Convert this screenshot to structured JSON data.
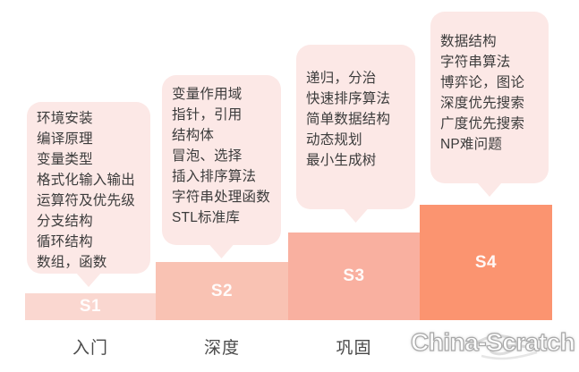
{
  "diagram": {
    "type": "staircase-curriculum-roadmap",
    "watermark": "China-Scratch"
  },
  "colors": {
    "background": "#ffffff",
    "bubble_fill": "#fce8e6",
    "bubble_text": "#3c3c3c",
    "step_label_text": "#ffffff",
    "stage_name_text": "#4a4a4a",
    "watermark_fill": "#ffffff",
    "watermark_outline": "#a8a8a8",
    "step_colors": [
      "#fad7d0",
      "#f9c2b3",
      "#f9b0a0",
      "#fb9470"
    ]
  },
  "stages": [
    {
      "step_label": "S1",
      "stage_name": "入门",
      "topics": [
        "环境安装",
        "编译原理",
        "变量类型",
        "格式化输入输出",
        "运算符及优先级",
        "分支结构",
        "循环结构",
        "数组，函数"
      ]
    },
    {
      "step_label": "S2",
      "stage_name": "深度",
      "topics": [
        "变量作用域",
        "指针，引用",
        "结构体",
        "冒泡、选择",
        "插入排序算法",
        "字符串处理函数",
        "STL标准库"
      ]
    },
    {
      "step_label": "S3",
      "stage_name": "巩固",
      "topics": [
        "递归，分治",
        "快速排序算法",
        "简单数据结构",
        "动态规划",
        "最小生成树"
      ]
    },
    {
      "step_label": "S4",
      "topics": [
        "数据结构",
        "字符串算法",
        "博弈论，图论",
        "深度优先搜索",
        "广度优先搜索",
        "NP难问题"
      ]
    }
  ]
}
